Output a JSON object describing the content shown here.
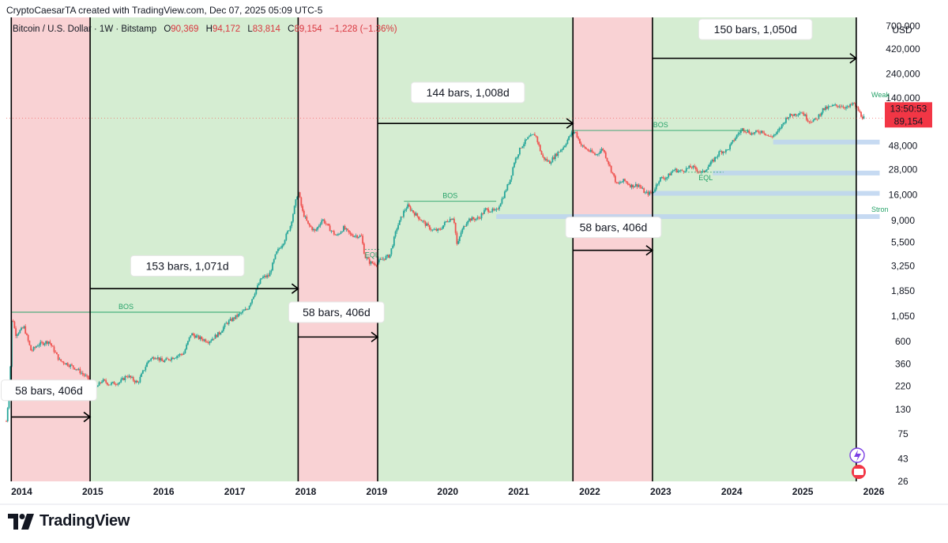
{
  "header": {
    "text": "CryptoCaesarTA created with TradingView.com, Dec 07, 2025 05:09 UTC-5"
  },
  "symbol": {
    "name": "Bitcoin / U.S. Dollar · 1W · Bitstamp",
    "open_label": "O",
    "open": "90,369",
    "high_label": "H",
    "high": "94,172",
    "low_label": "L",
    "low": "83,814",
    "close_label": "C",
    "close": "89,154",
    "change": "−1,228 (−1.36%)"
  },
  "footer": {
    "brand": "TradingView"
  },
  "colors": {
    "red_zone": "#f9d2d4",
    "green_zone": "#d5edd2",
    "up": "#26a69a",
    "down": "#ef5350",
    "line": "#000000",
    "bos": "#26a269",
    "price_tag": "#f23645",
    "eq_band": "#bcd3f0"
  },
  "chart_data": {
    "type": "candlestick",
    "title": "Bitcoin / U.S. Dollar · 1W · Bitstamp",
    "yscale": "log",
    "ylabel": "USD",
    "ylim": [
      26,
      850000
    ],
    "xlim": [
      2013.85,
      2026.2
    ],
    "y_ticks": [
      {
        "v": 700000,
        "label": "700,000"
      },
      {
        "v": 420000,
        "label": "420,000"
      },
      {
        "v": 240000,
        "label": "240,000"
      },
      {
        "v": 140000,
        "label": "140,000"
      },
      {
        "v": 48000,
        "label": "48,000"
      },
      {
        "v": 28000,
        "label": "28,000"
      },
      {
        "v": 16000,
        "label": "16,000"
      },
      {
        "v": 9000,
        "label": "9,000"
      },
      {
        "v": 5500,
        "label": "5,500"
      },
      {
        "v": 3250,
        "label": "3,250"
      },
      {
        "v": 1850,
        "label": "1,850"
      },
      {
        "v": 1050,
        "label": "1,050"
      },
      {
        "v": 600,
        "label": "600"
      },
      {
        "v": 360,
        "label": "360"
      },
      {
        "v": 220,
        "label": "220"
      },
      {
        "v": 130,
        "label": "130"
      },
      {
        "v": 75,
        "label": "75"
      },
      {
        "v": 43,
        "label": "43"
      },
      {
        "v": 26,
        "label": "26"
      }
    ],
    "x_ticks": [
      {
        "v": 2014,
        "label": "2014"
      },
      {
        "v": 2015,
        "label": "2015"
      },
      {
        "v": 2016,
        "label": "2016"
      },
      {
        "v": 2017,
        "label": "2017"
      },
      {
        "v": 2018,
        "label": "2018"
      },
      {
        "v": 2019,
        "label": "2019"
      },
      {
        "v": 2020,
        "label": "2020"
      },
      {
        "v": 2021,
        "label": "2021"
      },
      {
        "v": 2022,
        "label": "2022"
      },
      {
        "v": 2023,
        "label": "2023"
      },
      {
        "v": 2024,
        "label": "2024"
      },
      {
        "v": 2025,
        "label": "2025"
      },
      {
        "v": 2026,
        "label": "2026"
      }
    ],
    "zones": [
      {
        "start": 2013.92,
        "end": 2015.03,
        "kind": "red"
      },
      {
        "start": 2015.03,
        "end": 2017.96,
        "kind": "green"
      },
      {
        "start": 2017.96,
        "end": 2019.08,
        "kind": "red"
      },
      {
        "start": 2019.08,
        "end": 2021.83,
        "kind": "green"
      },
      {
        "start": 2021.83,
        "end": 2022.95,
        "kind": "red"
      },
      {
        "start": 2022.95,
        "end": 2025.82,
        "kind": "green"
      }
    ],
    "cycle_lines": [
      2013.92,
      2015.03,
      2017.96,
      2019.08,
      2021.83,
      2022.95,
      2025.82
    ],
    "measurements": [
      {
        "label": "58 bars, 406d",
        "x1": 2013.92,
        "x2": 2015.03,
        "y": 110,
        "box_x": 2014.45,
        "box_y": 200
      },
      {
        "label": "153 bars, 1,071d",
        "x1": 2015.03,
        "x2": 2017.96,
        "y": 1950,
        "box_x": 2016.4,
        "box_y": 3250
      },
      {
        "label": "58 bars, 406d",
        "x1": 2017.96,
        "x2": 2019.08,
        "y": 660,
        "box_x": 2018.5,
        "box_y": 1150
      },
      {
        "label": "144 bars, 1,008d",
        "x1": 2019.08,
        "x2": 2021.83,
        "y": 79000,
        "box_x": 2020.35,
        "box_y": 158000
      },
      {
        "label": "58 bars, 406d",
        "x1": 2021.83,
        "x2": 2022.95,
        "y": 4600,
        "box_x": 2022.4,
        "box_y": 7700
      },
      {
        "label": "150 bars, 1,050d",
        "x1": 2022.95,
        "x2": 2025.82,
        "y": 340000,
        "box_x": 2024.4,
        "box_y": 650000
      }
    ],
    "bos": [
      {
        "label": "BOS",
        "x1": 2013.92,
        "x2": 2017.15,
        "y": 1150
      },
      {
        "label": "BOS",
        "x1": 2019.45,
        "x2": 2020.75,
        "y": 13800
      },
      {
        "label": "BOS",
        "x1": 2021.83,
        "x2": 2024.3,
        "y": 67500
      }
    ],
    "eql": [
      {
        "label": "EQL",
        "x1": 2023.45,
        "x2": 2023.95,
        "y": 26500
      },
      {
        "label": "EQL",
        "x1": 2018.9,
        "x2": 2019.1,
        "y": 4700
      }
    ],
    "bands": [
      {
        "x1": 2024.65,
        "x2": 2026.15,
        "y": 52000
      },
      {
        "x1": 2023.8,
        "x2": 2026.15,
        "y": 26000
      },
      {
        "x1": 2022.95,
        "x2": 2026.15,
        "y": 16500
      },
      {
        "x1": 2020.75,
        "x2": 2026.15,
        "y": 9800
      }
    ],
    "corner_labels": [
      {
        "label": "Weak",
        "y": 150000
      },
      {
        "label": "Stron",
        "y": 11500
      }
    ],
    "price_path": [
      [
        2013.85,
        100
      ],
      [
        2013.9,
        230
      ],
      [
        2013.93,
        1100
      ],
      [
        2013.98,
        700
      ],
      [
        2014.1,
        820
      ],
      [
        2014.2,
        480
      ],
      [
        2014.3,
        560
      ],
      [
        2014.45,
        600
      ],
      [
        2014.6,
        390
      ],
      [
        2014.75,
        350
      ],
      [
        2014.85,
        320
      ],
      [
        2015.0,
        260
      ],
      [
        2015.05,
        185
      ],
      [
        2015.2,
        250
      ],
      [
        2015.3,
        230
      ],
      [
        2015.45,
        240
      ],
      [
        2015.55,
        280
      ],
      [
        2015.7,
        235
      ],
      [
        2015.85,
        390
      ],
      [
        2015.95,
        430
      ],
      [
        2016.05,
        380
      ],
      [
        2016.2,
        420
      ],
      [
        2016.35,
        460
      ],
      [
        2016.45,
        710
      ],
      [
        2016.55,
        650
      ],
      [
        2016.7,
        600
      ],
      [
        2016.85,
        720
      ],
      [
        2016.95,
        900
      ],
      [
        2017.05,
        1000
      ],
      [
        2017.15,
        1120
      ],
      [
        2017.25,
        1250
      ],
      [
        2017.35,
        1800
      ],
      [
        2017.45,
        2500
      ],
      [
        2017.55,
        2600
      ],
      [
        2017.65,
        4300
      ],
      [
        2017.75,
        5500
      ],
      [
        2017.85,
        8000
      ],
      [
        2017.96,
        17500
      ],
      [
        2018.02,
        11000
      ],
      [
        2018.1,
        8200
      ],
      [
        2018.2,
        7000
      ],
      [
        2018.3,
        9300
      ],
      [
        2018.4,
        7500
      ],
      [
        2018.5,
        6300
      ],
      [
        2018.6,
        7600
      ],
      [
        2018.7,
        6500
      ],
      [
        2018.85,
        6300
      ],
      [
        2018.9,
        4000
      ],
      [
        2018.97,
        3500
      ],
      [
        2019.05,
        3400
      ],
      [
        2019.15,
        3800
      ],
      [
        2019.25,
        4100
      ],
      [
        2019.35,
        7600
      ],
      [
        2019.45,
        11000
      ],
      [
        2019.5,
        12500
      ],
      [
        2019.6,
        10500
      ],
      [
        2019.75,
        8300
      ],
      [
        2019.85,
        7200
      ],
      [
        2019.95,
        7200
      ],
      [
        2020.05,
        8900
      ],
      [
        2020.15,
        9700
      ],
      [
        2020.2,
        5000
      ],
      [
        2020.25,
        6800
      ],
      [
        2020.35,
        9200
      ],
      [
        2020.5,
        9400
      ],
      [
        2020.6,
        11500
      ],
      [
        2020.75,
        11000
      ],
      [
        2020.85,
        15500
      ],
      [
        2020.95,
        23000
      ],
      [
        2021.0,
        33000
      ],
      [
        2021.1,
        47000
      ],
      [
        2021.2,
        57000
      ],
      [
        2021.3,
        62000
      ],
      [
        2021.4,
        37000
      ],
      [
        2021.5,
        33000
      ],
      [
        2021.6,
        40000
      ],
      [
        2021.7,
        47000
      ],
      [
        2021.8,
        62000
      ],
      [
        2021.86,
        66000
      ],
      [
        2021.95,
        48000
      ],
      [
        2022.05,
        43000
      ],
      [
        2022.15,
        39000
      ],
      [
        2022.25,
        45000
      ],
      [
        2022.35,
        30000
      ],
      [
        2022.45,
        20000
      ],
      [
        2022.55,
        22000
      ],
      [
        2022.65,
        19500
      ],
      [
        2022.75,
        20000
      ],
      [
        2022.85,
        16500
      ],
      [
        2022.95,
        16600
      ],
      [
        2023.05,
        23000
      ],
      [
        2023.15,
        23500
      ],
      [
        2023.25,
        28000
      ],
      [
        2023.35,
        27000
      ],
      [
        2023.5,
        30000
      ],
      [
        2023.65,
        26000
      ],
      [
        2023.8,
        34000
      ],
      [
        2023.9,
        42000
      ],
      [
        2024.0,
        43000
      ],
      [
        2024.15,
        62000
      ],
      [
        2024.22,
        70000
      ],
      [
        2024.35,
        63000
      ],
      [
        2024.5,
        67000
      ],
      [
        2024.6,
        58000
      ],
      [
        2024.7,
        63000
      ],
      [
        2024.85,
        92000
      ],
      [
        2024.95,
        97000
      ],
      [
        2025.05,
        103000
      ],
      [
        2025.15,
        84000
      ],
      [
        2025.25,
        85000
      ],
      [
        2025.35,
        108000
      ],
      [
        2025.5,
        117000
      ],
      [
        2025.6,
        118000
      ],
      [
        2025.7,
        112000
      ],
      [
        2025.78,
        124000
      ],
      [
        2025.84,
        108000
      ],
      [
        2025.9,
        92000
      ],
      [
        2025.94,
        89154
      ]
    ],
    "last_price": {
      "value": 89154,
      "label": "89,154",
      "countdown": "13:50:53"
    }
  }
}
